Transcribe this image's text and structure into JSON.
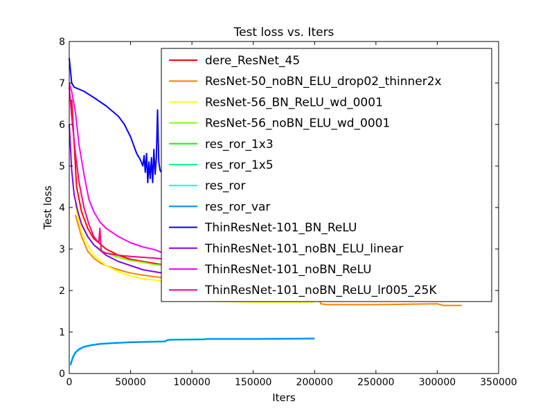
{
  "chart_data": {
    "type": "line",
    "title": "Test loss  vs. Iters",
    "xlabel": "Iters",
    "ylabel": "Test loss",
    "xlim": [
      0,
      350000
    ],
    "ylim": [
      0,
      8
    ],
    "xticks": [
      "0",
      "50000",
      "100000",
      "150000",
      "200000",
      "250000",
      "300000",
      "350000"
    ],
    "yticks": [
      "0",
      "1",
      "2",
      "3",
      "4",
      "5",
      "6",
      "7",
      "8"
    ],
    "grid": false,
    "legend_position": "top-right",
    "series": [
      {
        "name": "dere_ResNet_45",
        "color": "#ff0000",
        "x": [
          2000,
          6000,
          10000,
          15000,
          20000,
          30000,
          40000,
          50000,
          60000,
          70000,
          80000
        ],
        "y": [
          6.6,
          4.5,
          3.9,
          3.5,
          3.25,
          3.0,
          2.85,
          2.75,
          2.7,
          2.65,
          2.6
        ]
      },
      {
        "name": "ResNet-50_noBN_ELU_drop02_thinner2x",
        "color": "#ff8000",
        "x": [
          5000,
          10000,
          15000,
          20000,
          25000,
          30000,
          40000,
          50000,
          60000,
          70000,
          80000,
          100000,
          150000,
          200000,
          205000,
          210000,
          250000,
          300000,
          305000,
          320000
        ],
        "y": [
          3.82,
          3.3,
          2.95,
          2.78,
          2.67,
          2.6,
          2.5,
          2.42,
          2.37,
          2.33,
          2.3,
          2.25,
          2.2,
          2.18,
          1.68,
          1.66,
          1.66,
          1.68,
          1.64,
          1.64
        ]
      },
      {
        "name": "ResNet-56_BN_ReLU_wd_0001",
        "color": "#ffff00",
        "x": [
          5000,
          10000,
          15000,
          20000,
          30000,
          40000,
          50000,
          60000,
          70000,
          78000,
          100000,
          150000,
          200000
        ],
        "y": [
          4.05,
          3.4,
          3.1,
          2.85,
          2.6,
          2.45,
          2.35,
          2.28,
          2.25,
          2.2,
          1.75,
          1.72,
          1.72
        ]
      },
      {
        "name": "ResNet-56_noBN_ELU_wd_0001",
        "color": "#80ff00",
        "x": [
          5000,
          10000,
          15000,
          20000,
          30000,
          40000,
          50000,
          60000,
          70000,
          80000
        ],
        "y": [
          4.1,
          3.6,
          3.3,
          3.1,
          2.9,
          2.8,
          2.72,
          2.68,
          2.62,
          2.6
        ]
      },
      {
        "name": "res_ror_1x3",
        "color": "#00ff00",
        "x": [],
        "y": []
      },
      {
        "name": "res_ror_1x5",
        "color": "#00ff80",
        "x": [],
        "y": []
      },
      {
        "name": "res_ror",
        "color": "#00ffff",
        "x": [
          1000,
          3000,
          5000,
          8000,
          12000,
          18000,
          25000,
          35000,
          50000,
          65000,
          78000,
          80000,
          82000,
          110000,
          112000,
          150000,
          200000
        ],
        "y": [
          0.24,
          0.42,
          0.52,
          0.6,
          0.65,
          0.69,
          0.72,
          0.74,
          0.76,
          0.77,
          0.78,
          0.81,
          0.82,
          0.83,
          0.84,
          0.84,
          0.85
        ]
      },
      {
        "name": "res_ror_var",
        "color": "#0080ff",
        "x": [
          1000,
          3000,
          5000,
          8000,
          12000,
          18000,
          25000,
          35000,
          50000,
          65000,
          78000,
          80000,
          82000,
          110000,
          112000,
          150000,
          200000
        ],
        "y": [
          0.2,
          0.38,
          0.5,
          0.58,
          0.64,
          0.68,
          0.71,
          0.73,
          0.75,
          0.76,
          0.77,
          0.8,
          0.81,
          0.82,
          0.83,
          0.83,
          0.84
        ]
      },
      {
        "name": "ThinResNet-101_BN_ReLU",
        "color": "#0000ff",
        "x": [
          0,
          2000,
          4000,
          8000,
          12000,
          20000,
          30000,
          40000,
          45000,
          50000,
          55000,
          58000,
          60000,
          61000,
          62000,
          63000,
          64000,
          65000,
          66000,
          67000,
          68000,
          69000,
          70000,
          71000,
          72000,
          73000,
          74000,
          75000
        ],
        "y": [
          7.6,
          7.0,
          6.9,
          6.85,
          6.8,
          6.65,
          6.45,
          6.2,
          6.0,
          5.7,
          5.3,
          5.15,
          5.0,
          5.25,
          4.85,
          5.3,
          4.6,
          5.1,
          4.7,
          5.2,
          4.6,
          5.4,
          4.8,
          5.2,
          6.35,
          5.1,
          4.9,
          4.85
        ]
      },
      {
        "name": "ThinResNet-101_noBN_ELU_linear",
        "color": "#8000ff",
        "x": [
          0,
          2000,
          4000,
          7000,
          10000,
          15000,
          20000,
          30000,
          40000,
          50000,
          60000,
          70000,
          80000
        ],
        "y": [
          6.0,
          4.9,
          4.3,
          3.9,
          3.6,
          3.3,
          3.1,
          2.85,
          2.7,
          2.6,
          2.5,
          2.45,
          2.4
        ]
      },
      {
        "name": "ThinResNet-101_noBN_ReLU",
        "color": "#ff00ff",
        "x": [
          0,
          2000,
          5000,
          8000,
          12000,
          16000,
          20000,
          25000,
          30000,
          35000,
          40000,
          50000,
          60000,
          70000,
          75000,
          80000
        ],
        "y": [
          7.0,
          6.8,
          6.3,
          5.5,
          4.8,
          4.2,
          3.9,
          3.65,
          3.5,
          3.4,
          3.3,
          3.15,
          3.05,
          2.98,
          2.92,
          2.88
        ]
      },
      {
        "name": "ThinResNet-101_noBN_ReLU_lr005_25K",
        "color": "#ff0080",
        "x": [
          0,
          2000,
          5000,
          8000,
          12000,
          16000,
          20000,
          24000,
          25000,
          26000,
          30000,
          40000,
          50000,
          60000,
          70000,
          80000
        ],
        "y": [
          6.9,
          6.2,
          5.3,
          4.6,
          4.0,
          3.6,
          3.3,
          3.15,
          3.5,
          2.95,
          2.9,
          2.85,
          2.82,
          2.8,
          2.78,
          2.75
        ]
      }
    ]
  }
}
